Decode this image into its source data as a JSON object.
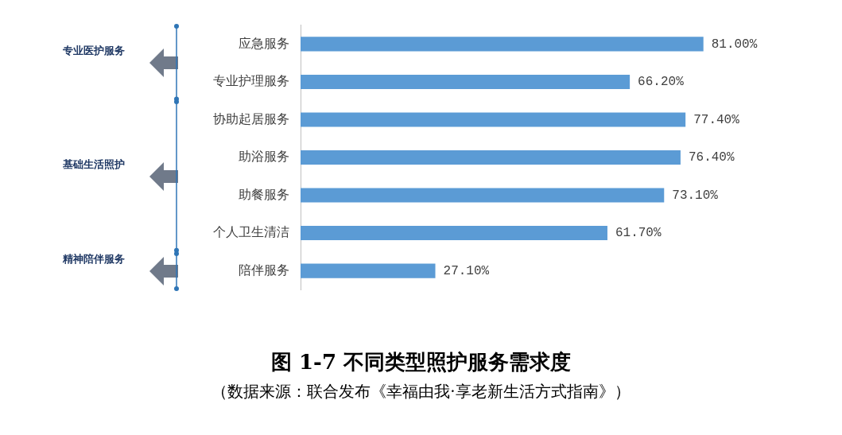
{
  "chart_data": {
    "type": "bar",
    "orientation": "horizontal",
    "title": "图 1-7  不同类型照护服务需求度",
    "categories": [
      "应急服务",
      "专业护理服务",
      "协助起居服务",
      "助浴服务",
      "助餐服务",
      "个人卫生清洁",
      "陪伴服务"
    ],
    "values": [
      81.0,
      66.2,
      77.4,
      76.4,
      73.1,
      61.7,
      27.1
    ],
    "value_labels": [
      "81.00%",
      "66.20%",
      "77.40%",
      "76.40%",
      "73.10%",
      "61.70%",
      "27.10%"
    ],
    "color": "#5b9bd5",
    "annotations": [
      "专业医护服务",
      "基础生活照护",
      "精神陪伴服务",
      "（数据来源：联合发布《幸福由我·享老新生活方式指南》）"
    ]
  }
}
